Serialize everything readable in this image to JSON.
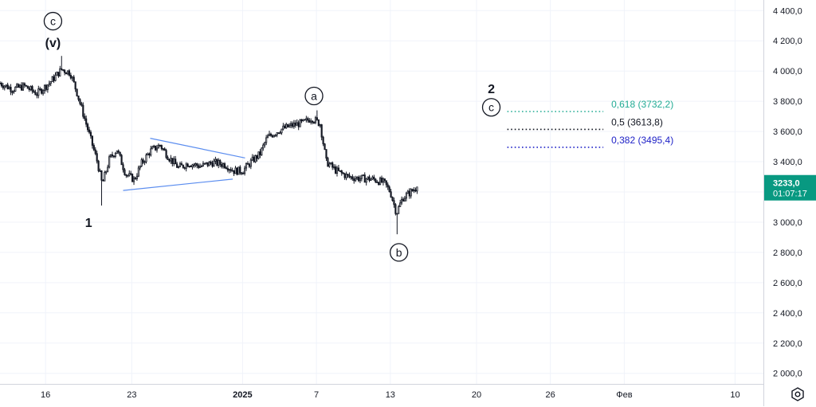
{
  "chart_data": {
    "type": "candlestick",
    "y_axis": {
      "ticks": [
        "4 400,0",
        "4 200,0",
        "4 000,0",
        "3 800,0",
        "3 600,0",
        "3 400,0",
        "3 200,0",
        "3 000,0",
        "2 800,0",
        "2 600,0",
        "2 400,0",
        "2 200,0",
        "2 000,0"
      ],
      "tick_values": [
        4400,
        4200,
        4000,
        3800,
        3600,
        3400,
        3200,
        3000,
        2800,
        2600,
        2400,
        2200,
        2000
      ],
      "ylim": [
        1930,
        4470
      ],
      "grid": true
    },
    "x_axis": {
      "ticks": [
        {
          "label": "16",
          "day": 16
        },
        {
          "label": "23",
          "day": 23
        },
        {
          "label": "2025",
          "day": 32,
          "bold": true
        },
        {
          "label": "7",
          "day": 38
        },
        {
          "label": "13",
          "day": 44
        },
        {
          "label": "20",
          "day": 51
        },
        {
          "label": "26",
          "day": 57
        },
        {
          "label": "Фев",
          "day": 63
        },
        {
          "label": "10",
          "day": 72
        }
      ],
      "xlim": [
        12.3,
        74.3
      ],
      "grid": true
    },
    "price": {
      "keypoints": [
        [
          12.3,
          3920
        ],
        [
          13.3,
          3880
        ],
        [
          14.3,
          3900
        ],
        [
          15.3,
          3850
        ],
        [
          16.3,
          3920
        ],
        [
          17.3,
          4010
        ],
        [
          18.0,
          3990
        ],
        [
          18.5,
          3870
        ],
        [
          19.3,
          3650
        ],
        [
          20.2,
          3400
        ],
        [
          20.6,
          3250
        ],
        [
          21.2,
          3420
        ],
        [
          21.8,
          3480
        ],
        [
          22.5,
          3320
        ],
        [
          23.2,
          3280
        ],
        [
          23.8,
          3390
        ],
        [
          24.5,
          3470
        ],
        [
          25.3,
          3510
        ],
        [
          26.0,
          3430
        ],
        [
          26.8,
          3360
        ],
        [
          27.6,
          3390
        ],
        [
          28.6,
          3370
        ],
        [
          29.6,
          3395
        ],
        [
          30.6,
          3380
        ],
        [
          31.3,
          3340
        ],
        [
          32.0,
          3340
        ],
        [
          32.7,
          3400
        ],
        [
          33.4,
          3450
        ],
        [
          34.0,
          3560
        ],
        [
          35.0,
          3610
        ],
        [
          36.0,
          3640
        ],
        [
          37.0,
          3660
        ],
        [
          37.6,
          3690
        ],
        [
          38.3,
          3650
        ],
        [
          38.8,
          3400
        ],
        [
          39.6,
          3340
        ],
        [
          40.6,
          3300
        ],
        [
          41.5,
          3290
        ],
        [
          42.6,
          3285
        ],
        [
          43.5,
          3260
        ],
        [
          44.0,
          3200
        ],
        [
          44.5,
          3060
        ],
        [
          45.0,
          3160
        ],
        [
          46.2,
          3233
        ]
      ],
      "extremes": [
        {
          "x": 17.3,
          "y": 4100
        },
        {
          "x": 20.6,
          "y": 3110
        },
        {
          "x": 38.0,
          "y": 3740
        },
        {
          "x": 44.5,
          "y": 2920
        }
      ],
      "current_value": "3233,0",
      "current": 3233,
      "countdown": "01:07:17",
      "color": "#089981"
    },
    "triangle": {
      "color": "#5b8def",
      "upper": [
        [
          24.5,
          3555
        ],
        [
          32.2,
          3425
        ]
      ],
      "lower": [
        [
          22.3,
          3210
        ],
        [
          31.2,
          3285
        ]
      ]
    },
    "wave_labels": [
      {
        "text": "c",
        "circled": true,
        "x": 16.6,
        "y": 4330
      },
      {
        "text": "(v)",
        "circled": false,
        "x": 16.6,
        "y": 4190
      },
      {
        "text": "1",
        "circled": false,
        "x": 19.5,
        "y": 3000
      },
      {
        "text": "a",
        "circled": true,
        "x": 37.8,
        "y": 3835
      },
      {
        "text": "b",
        "circled": true,
        "x": 44.7,
        "y": 2800
      },
      {
        "text": "2",
        "circled": false,
        "x": 52.2,
        "y": 3885
      },
      {
        "text": "c",
        "circled": true,
        "x": 52.2,
        "y": 3760
      }
    ],
    "fib_levels": [
      {
        "label": "0,618 (3732,2)",
        "level": 3732.2,
        "color": "#22ab94"
      },
      {
        "label": "0,5 (3613,8)",
        "level": 3613.8,
        "color": "#131722"
      },
      {
        "label": "0,382 (3495,4)",
        "level": 3495.4,
        "color": "#1f22c7"
      }
    ],
    "fib_range": {
      "x_start": 53.5,
      "x_end": 61.3
    }
  },
  "settings_icon": "settings-icon"
}
